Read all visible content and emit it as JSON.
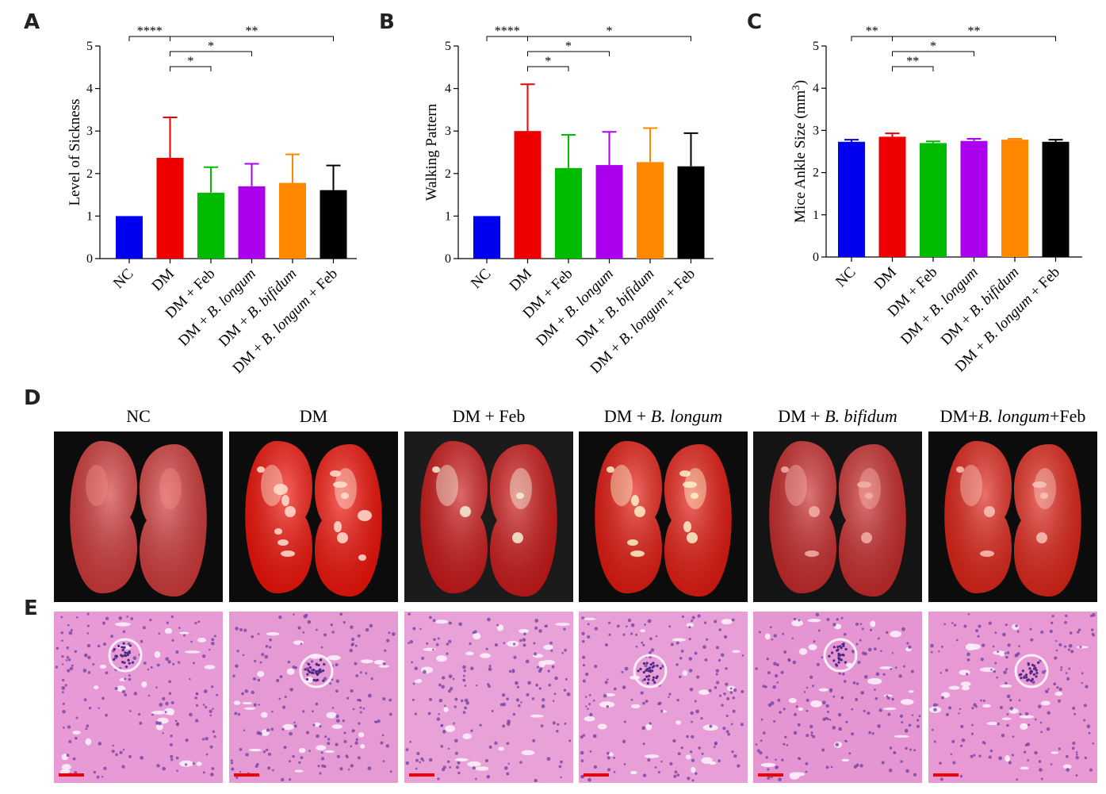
{
  "panel_letters": [
    "A",
    "B",
    "C",
    "D",
    "E"
  ],
  "colors": {
    "NC": "#0000ee",
    "DM": "#ee0000",
    "DM_Feb": "#00bb00",
    "DM_BL": "#aa00ee",
    "DM_BB": "#ff8800",
    "DM_BL_Feb": "#000000"
  },
  "chart_data": [
    {
      "type": "bar",
      "panel": "A",
      "ylabel": "Level of Sickness",
      "ylim": [
        0,
        5
      ],
      "yticks": [
        "0",
        "1",
        "2",
        "3",
        "4",
        "5"
      ],
      "categories": [
        "NC",
        "DM",
        "DM + Feb",
        "DM + B. longum",
        "DM + B. bifidum",
        "DM + B. longum + Feb"
      ],
      "values": [
        1.0,
        2.37,
        1.55,
        1.7,
        1.78,
        1.61
      ],
      "errors": [
        0,
        0.95,
        0.6,
        0.53,
        0.67,
        0.58
      ],
      "significance": [
        {
          "from": 0,
          "to": 1,
          "label": "****"
        },
        {
          "from": 1,
          "to": 5,
          "label": "**"
        },
        {
          "from": 1,
          "to": 3,
          "label": "*"
        },
        {
          "from": 1,
          "to": 2,
          "label": "*"
        }
      ]
    },
    {
      "type": "bar",
      "panel": "B",
      "ylabel": "Walking Pattern",
      "ylim": [
        0,
        5
      ],
      "yticks": [
        "0",
        "1",
        "2",
        "3",
        "4",
        "5"
      ],
      "categories": [
        "NC",
        "DM",
        "DM + Feb",
        "DM + B. longum",
        "DM + B. bifidum",
        "DM + B. longum + Feb"
      ],
      "values": [
        1.0,
        3.0,
        2.13,
        2.2,
        2.27,
        2.17
      ],
      "errors": [
        0,
        1.1,
        0.78,
        0.78,
        0.8,
        0.78
      ],
      "significance": [
        {
          "from": 0,
          "to": 1,
          "label": "****"
        },
        {
          "from": 1,
          "to": 5,
          "label": "*"
        },
        {
          "from": 1,
          "to": 3,
          "label": "*"
        },
        {
          "from": 1,
          "to": 2,
          "label": "*"
        }
      ]
    },
    {
      "type": "bar",
      "panel": "C",
      "ylabel": "Mice Ankle Size (mm³)",
      "ylabel_main": "Mice Ankle Size (mm",
      "ylabel_sup": "3",
      "ylabel_end": ")",
      "ylim": [
        0,
        5
      ],
      "yticks": [
        "0",
        "1",
        "2",
        "3",
        "4",
        "5"
      ],
      "categories": [
        "NC",
        "DM",
        "DM + Feb",
        "DM + B. longum",
        "DM + B. bifidum",
        "DM + B. longum + Feb"
      ],
      "values": [
        2.73,
        2.85,
        2.7,
        2.75,
        2.78,
        2.73
      ],
      "errors": [
        0.05,
        0.08,
        0.04,
        0.05,
        0.02,
        0.05
      ],
      "significance": [
        {
          "from": 0,
          "to": 1,
          "label": "**"
        },
        {
          "from": 1,
          "to": 5,
          "label": "**"
        },
        {
          "from": 1,
          "to": 3,
          "label": "*"
        },
        {
          "from": 1,
          "to": 2,
          "label": "**"
        }
      ]
    }
  ],
  "photo_columns": [
    {
      "pre": "NC",
      "ital": "",
      "post": ""
    },
    {
      "pre": "DM",
      "ital": "",
      "post": ""
    },
    {
      "pre": "DM + Feb",
      "ital": "",
      "post": ""
    },
    {
      "pre": "DM + ",
      "ital": "B. longum",
      "post": ""
    },
    {
      "pre": "DM + ",
      "ital": "B. bifidum",
      "post": ""
    },
    {
      "pre": "DM+",
      "ital": "B. longum",
      "post": "+Feb"
    }
  ],
  "kidney_photos": [
    {
      "name": "NC",
      "bg": "#0c0c0c",
      "kidney": "#d23a3a",
      "hi": "#f08a80",
      "spots": 0
    },
    {
      "name": "DM",
      "bg": "#0c0c0c",
      "kidney": "#f21208",
      "hi": "#ffe0d0",
      "spots": 7
    },
    {
      "name": "DM + Feb",
      "bg": "#1b1b1b",
      "kidney": "#cc1818",
      "hi": "#f6f0d8",
      "spots": 2
    },
    {
      "name": "DM + B. longum",
      "bg": "#0c0c0c",
      "kidney": "#e51a10",
      "hi": "#fff0c8",
      "spots": 5
    },
    {
      "name": "DM + B. bifidum",
      "bg": "#141414",
      "kidney": "#c92a2a",
      "hi": "#f3b0a8",
      "spots": 3
    },
    {
      "name": "DM+B. longum+Feb",
      "bg": "#0c0c0c",
      "kidney": "#e02418",
      "hi": "#f9c4b8",
      "spots": 3
    }
  ],
  "histology_panels": [
    {
      "name": "NC",
      "bg": "#e79ad6"
    },
    {
      "name": "DM",
      "bg": "#e59ad4"
    },
    {
      "name": "DM + Feb",
      "bg": "#e9a2d8"
    },
    {
      "name": "DM + B. longum",
      "bg": "#e89fd8"
    },
    {
      "name": "DM + B. bifidum",
      "bg": "#e595d1"
    },
    {
      "name": "DM+B. longum+Feb",
      "bg": "#e898d3"
    }
  ]
}
